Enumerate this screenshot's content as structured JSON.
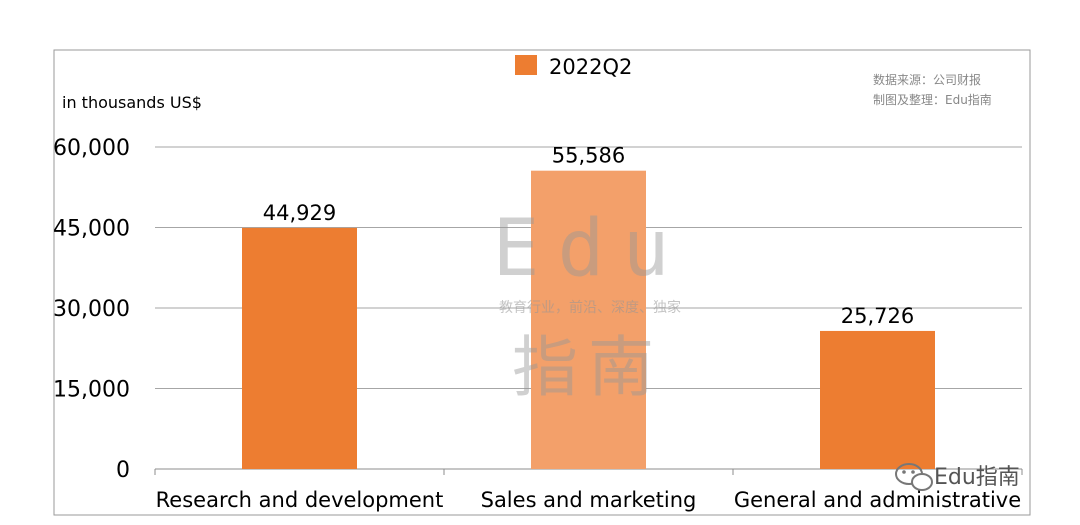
{
  "chart_data": {
    "type": "bar",
    "categories": [
      "Research and development",
      "Sales and marketing",
      "General and administrative"
    ],
    "series": [
      {
        "name": "2022Q2",
        "values": [
          44929,
          55586,
          25726
        ]
      }
    ],
    "data_labels": [
      "44,929",
      "55,586",
      "25,726"
    ],
    "yticks": [
      0,
      15000,
      30000,
      45000,
      60000
    ],
    "ytick_labels": [
      "0",
      "15,000",
      "30,000",
      "45,000",
      "60,000"
    ],
    "ylim": [
      0,
      60000
    ],
    "ylabel": "in thousands US$",
    "grid": true,
    "legend_position": "top-center",
    "bar_color": "#ED7D31",
    "highlight_color": "#F3A06A"
  },
  "source_note": {
    "line1": "数据来源：公司财报",
    "line2": "制图及整理：Edu指南"
  },
  "watermark": {
    "latin": "Edu",
    "tagline": "教育行业，前沿、深度、独家",
    "chinese": "指南"
  },
  "brand": {
    "label": "Edu指南",
    "icon": "wechat-icon"
  }
}
